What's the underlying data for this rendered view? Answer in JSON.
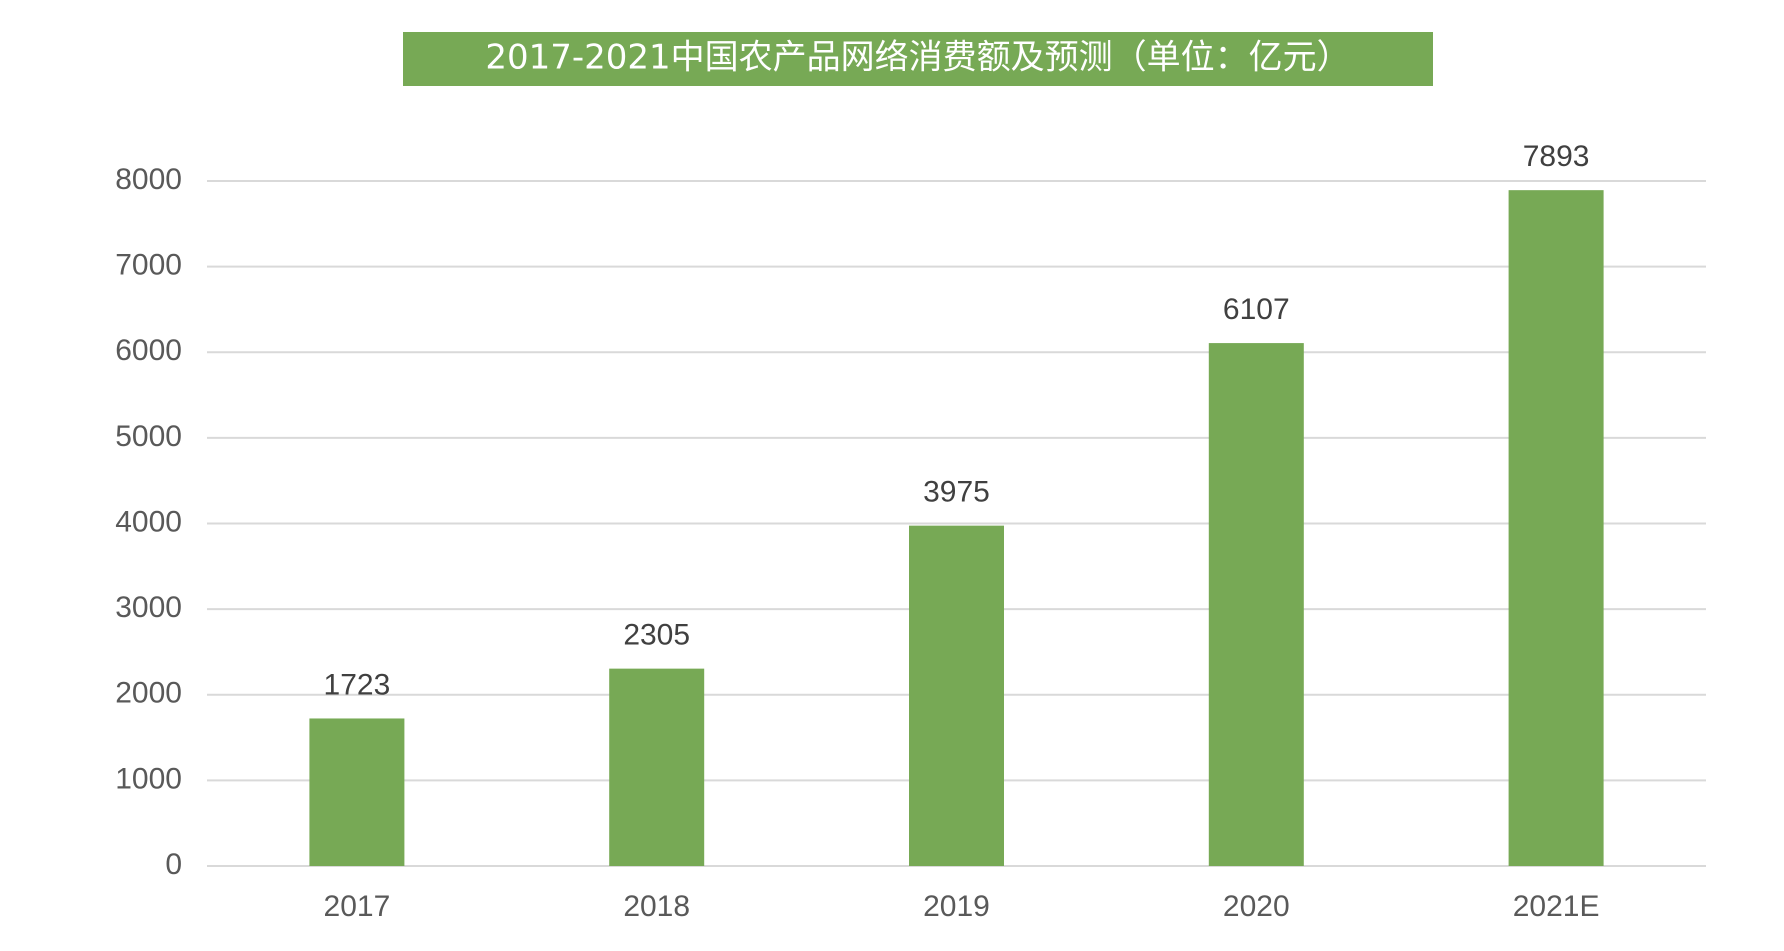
{
  "chart_data": {
    "type": "bar",
    "title": "2017-2021中国农产品网络消费额及预测（单位：亿元）",
    "categories": [
      "2017",
      "2018",
      "2019",
      "2020",
      "2021E"
    ],
    "values": [
      1723,
      2305,
      3975,
      6107,
      7893
    ],
    "ylim": [
      0,
      8000
    ],
    "yticks": [
      "0",
      "1000",
      "2000",
      "3000",
      "4000",
      "5000",
      "6000",
      "7000",
      "8000"
    ],
    "grid": true,
    "legend": "none",
    "colors": {
      "bar": "#77a955",
      "title_background": "#77a955",
      "title_text": "#ffffff",
      "grid": "#d9d9d9",
      "tick_text": "#595959",
      "label_text": "#404040"
    }
  }
}
